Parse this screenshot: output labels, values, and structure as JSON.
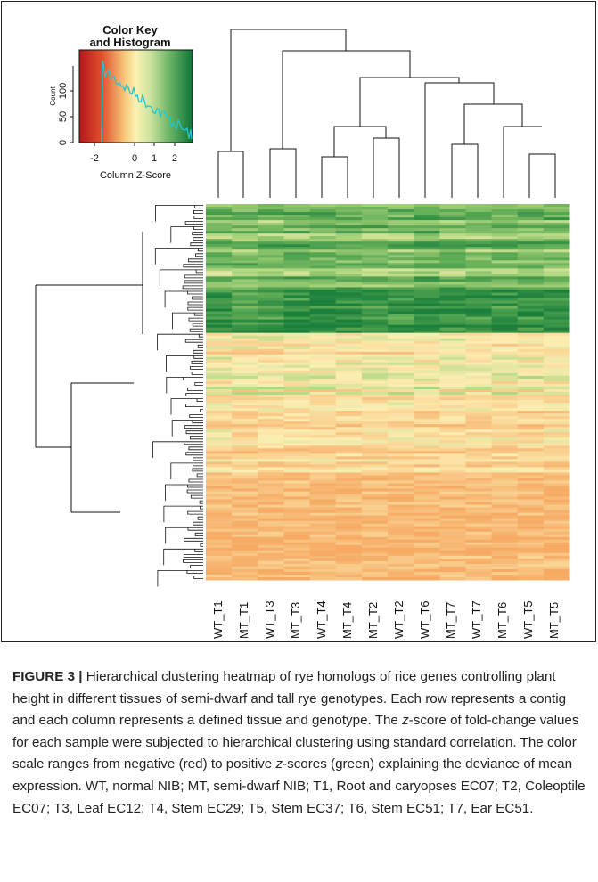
{
  "figure": {
    "color_key": {
      "title_line1": "Color Key",
      "title_line2": "and Histogram",
      "y_axis_label": "Count",
      "y_ticks": [
        "0",
        "50",
        "100"
      ],
      "x_ticks": [
        "-2",
        "0",
        "1",
        "2"
      ],
      "x_axis_label": "Column Z-Score",
      "colors": {
        "negative": "#c4211f",
        "mid": "#fdf5b3",
        "positive": "#1a7f3a",
        "histogram": "#1ec8d4"
      }
    },
    "columns": [
      "WT_T1",
      "MT_T1",
      "WT_T3",
      "MT_T3",
      "WT_T4",
      "MT_T4",
      "MT_T2",
      "WT_T2",
      "WT_T6",
      "MT_T7",
      "WT_T7",
      "MT_T6",
      "WT_T5",
      "MT_T5"
    ]
  },
  "caption": {
    "label": "FIGURE 3 |",
    "part1": " Hierarchical clustering heatmap of rye homologs of rice genes controlling plant height in different tissues of semi-dwarf and tall rye genotypes. Each row represents a contig and each column represents a defined tissue and genotype. The ",
    "z1": "z",
    "part2": "-score of fold-change values for each sample were subjected to hierarchical clustering using standard correlation. The color scale ranges from negative (red) to positive ",
    "z2": "z",
    "part3": "-scores (green) explaining the deviance of mean expression. WT, normal NIB; MT, semi-dwarf NIB; T1, Root and caryopses EC07; T2, Coleoptile EC07; T3, Leaf EC12; T4, Stem EC29; T5, Stem EC37; T6, Stem EC51; T7, Ear EC51."
  }
}
